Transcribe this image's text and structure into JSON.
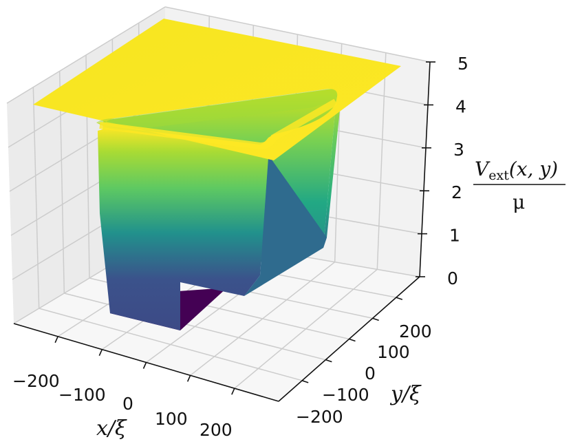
{
  "chart_data": {
    "type": "surface3d",
    "title": "",
    "xlabel": "x/ξ",
    "ylabel": "y/ξ",
    "zlabel": {
      "numerator_symbol": "V",
      "numerator_subscript": "ext",
      "numerator_args": "(x, y)",
      "denominator": "μ"
    },
    "x_ticks": [
      -200,
      -100,
      0,
      100,
      200
    ],
    "y_ticks": [
      -200,
      -100,
      0,
      100,
      200
    ],
    "z_ticks": [
      0,
      1,
      2,
      3,
      4,
      5
    ],
    "x_tick_labels": [
      "−200",
      "−100",
      "0",
      "100",
      "200"
    ],
    "y_tick_labels": [
      "−200",
      "−100",
      "0",
      "100",
      "200"
    ],
    "z_tick_labels": [
      "0",
      "1",
      "2",
      "3",
      "4",
      "5"
    ],
    "xlim": [
      -300,
      300
    ],
    "ylim": [
      -300,
      300
    ],
    "zlim": [
      0,
      5
    ],
    "colormap": "viridis",
    "surface": {
      "description_values": {
        "outer_level": 4.5,
        "inner_level": 0.0,
        "well_half_width": 150
      }
    },
    "grid": true,
    "colors": {
      "pane_left": "#ebebeb",
      "pane_back": "#f2f2f2",
      "pane_floor": "#f7f7f7",
      "grid": "#cccccc",
      "viridis": [
        "#440154",
        "#3b528b",
        "#21918c",
        "#5ec962",
        "#fde725"
      ]
    }
  }
}
